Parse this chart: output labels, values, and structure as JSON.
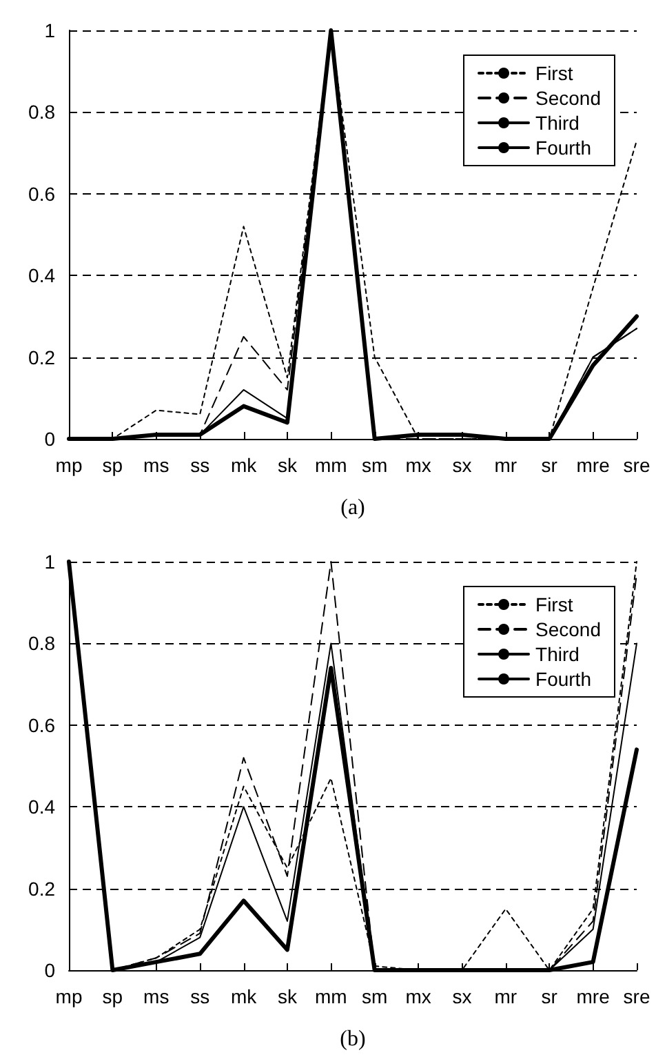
{
  "chart_data": [
    {
      "type": "line",
      "xlabel": "(a)",
      "categories": [
        "mp",
        "sp",
        "ms",
        "ss",
        "mk",
        "sk",
        "mm",
        "sm",
        "mx",
        "sx",
        "mr",
        "sr",
        "mre",
        "sre"
      ],
      "ylim": [
        0,
        1
      ],
      "yticks": [
        0,
        0.2,
        0.4,
        0.6,
        0.8,
        1
      ],
      "grid": "y",
      "legend": "top right",
      "marker": "none",
      "series": [
        {
          "name": "First",
          "color": "#000000",
          "line_style": "dotted",
          "values": [
            0,
            0,
            0.07,
            0.06,
            0.52,
            0.15,
            1,
            0.2,
            0,
            0,
            0,
            0,
            0.37,
            0.73
          ]
        },
        {
          "name": "Second",
          "color": "#000000",
          "line_style": "dashed",
          "values": [
            0,
            0,
            0.01,
            0.01,
            0.25,
            0.12,
            1,
            0,
            0,
            0,
            0,
            0,
            0.2,
            0.27
          ]
        },
        {
          "name": "Third",
          "color": "#000000",
          "line_style": "solid",
          "values": [
            0,
            0,
            0.01,
            0.01,
            0.12,
            0.05,
            1,
            0,
            0.01,
            0.01,
            0,
            0,
            0.2,
            0.27
          ]
        },
        {
          "name": "Fourth",
          "color": "#000000",
          "line_style": "solid",
          "values": [
            0,
            0,
            0.01,
            0.01,
            0.08,
            0.04,
            1,
            0,
            0.01,
            0.01,
            0,
            0,
            0.18,
            0.3
          ]
        }
      ]
    },
    {
      "type": "line",
      "xlabel": "(b)",
      "categories": [
        "mp",
        "sp",
        "ms",
        "ss",
        "mk",
        "sk",
        "mm",
        "sm",
        "mx",
        "sx",
        "mr",
        "sr",
        "mre",
        "sre"
      ],
      "ylim": [
        0,
        1
      ],
      "yticks": [
        0,
        0.2,
        0.4,
        0.6,
        0.8,
        1
      ],
      "grid": "y",
      "legend": "top right",
      "marker": "none",
      "series": [
        {
          "name": "First",
          "color": "#000000",
          "line_style": "dotted",
          "values": [
            1,
            0,
            0.03,
            0.1,
            0.45,
            0.25,
            0.47,
            0.01,
            0,
            0,
            0.15,
            0,
            0.15,
            1
          ]
        },
        {
          "name": "Second",
          "color": "#000000",
          "line_style": "dashed",
          "values": [
            1,
            0,
            0.03,
            0.09,
            0.52,
            0.23,
            1,
            0,
            0,
            0,
            0,
            0,
            0.12,
            0.97
          ]
        },
        {
          "name": "Third",
          "color": "#000000",
          "line_style": "solid",
          "values": [
            1,
            0,
            0.02,
            0.08,
            0.4,
            0.12,
            0.8,
            0,
            0,
            0,
            0,
            0,
            0.1,
            0.8
          ]
        },
        {
          "name": "Fourth",
          "color": "#000000",
          "line_style": "solid",
          "values": [
            1,
            0,
            0.02,
            0.04,
            0.17,
            0.05,
            0.74,
            0,
            0,
            0,
            0,
            0,
            0.02,
            0.54
          ]
        }
      ]
    }
  ]
}
